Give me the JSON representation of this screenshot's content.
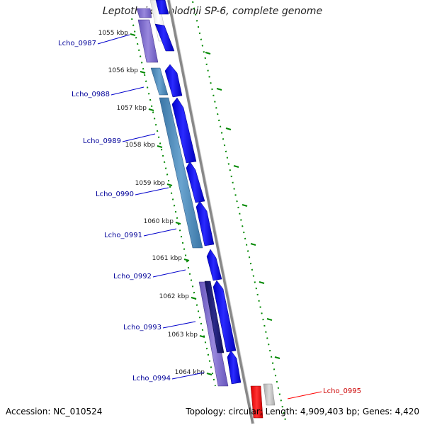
{
  "title": "Leptothrix cholodnii SP-6, complete genome",
  "footer": {
    "accession": "Accession: NC_010524",
    "summary": "Topology: circular; Length: 4,909,403 bp; Genes: 4,420"
  },
  "colors": {
    "cds_blue": "#0000ee",
    "highlight_red": "#ee0000",
    "label_blue": "#000099",
    "label_red": "#cc0000",
    "tick_green": "#008800",
    "backbone_gray": "#888888",
    "cog_purple": "#7766cc",
    "cog_steel": "#4a8ab8",
    "cog_navy": "#1a1a6e",
    "cog_gray": "#bbbbbb"
  },
  "kbp_ticks": [
    "1055 kbp",
    "1056 kbp",
    "1057 kbp",
    "1058 kbp",
    "1059 kbp",
    "1060 kbp",
    "1061 kbp",
    "1062 kbp",
    "1063 kbp",
    "1064 kbp"
  ],
  "gene_labels": [
    {
      "name": "Lcho_0987",
      "highlight": false
    },
    {
      "name": "Lcho_0988",
      "highlight": false
    },
    {
      "name": "Lcho_0989",
      "highlight": false
    },
    {
      "name": "Lcho_0990",
      "highlight": false
    },
    {
      "name": "Lcho_0991",
      "highlight": false
    },
    {
      "name": "Lcho_0992",
      "highlight": false
    },
    {
      "name": "Lcho_0993",
      "highlight": false
    },
    {
      "name": "Lcho_0994",
      "highlight": false
    },
    {
      "name": "Lcho_0995",
      "highlight": true
    }
  ]
}
